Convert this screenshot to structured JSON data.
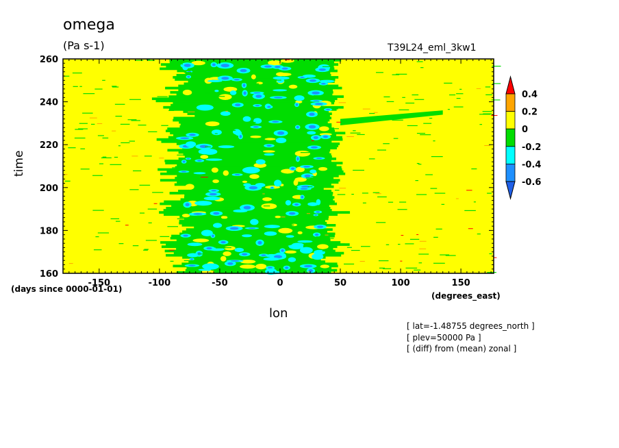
{
  "chart_data": {
    "type": "heatmap",
    "title": "omega",
    "units": "(Pa s-1)",
    "run_name": "T39L24_eml_3kw1",
    "xlabel": "lon",
    "ylabel": "time",
    "x_units": "(degrees_east)",
    "y_units": "(days since 0000-01-01)",
    "xlim": [
      -180,
      177.2
    ],
    "ylim": [
      160,
      260
    ],
    "x_ticks": [
      -150,
      -100,
      -50,
      0,
      50,
      100,
      150
    ],
    "y_ticks": [
      160,
      180,
      200,
      220,
      240,
      260
    ],
    "x_tick_labels": [
      "-150",
      "-100",
      "-50",
      "0",
      "50",
      "100",
      "150"
    ],
    "y_tick_labels": [
      "160",
      "180",
      "200",
      "220",
      "240",
      "260"
    ],
    "colorbar": {
      "levels": [
        -0.6,
        -0.4,
        -0.2,
        0,
        0.2,
        0.4
      ],
      "labels": [
        "0.4",
        "0.2",
        "0",
        "-0.2",
        "-0.4",
        "-0.6"
      ],
      "colors": [
        "#2060e8",
        "#1e90ff",
        "#00ffff",
        "#00dd00",
        "#ffff00",
        "#ffa500",
        "#ff0000"
      ],
      "extend": "both"
    },
    "active_band": {
      "description": "region of negative omega (ascent) between roughly -100 and 50 degrees east, strongest between -80 and 40",
      "lon_range": [
        -100,
        50
      ],
      "core_lon_range": [
        -80,
        40
      ],
      "streak_feature": {
        "lon_range": [
          50,
          135
        ],
        "time": 235
      }
    },
    "annotations": [
      "[ lat=-1.48755 degrees_north ]",
      "[ plev=50000 Pa ]",
      "[ (diff) from (mean) zonal ]"
    ]
  }
}
